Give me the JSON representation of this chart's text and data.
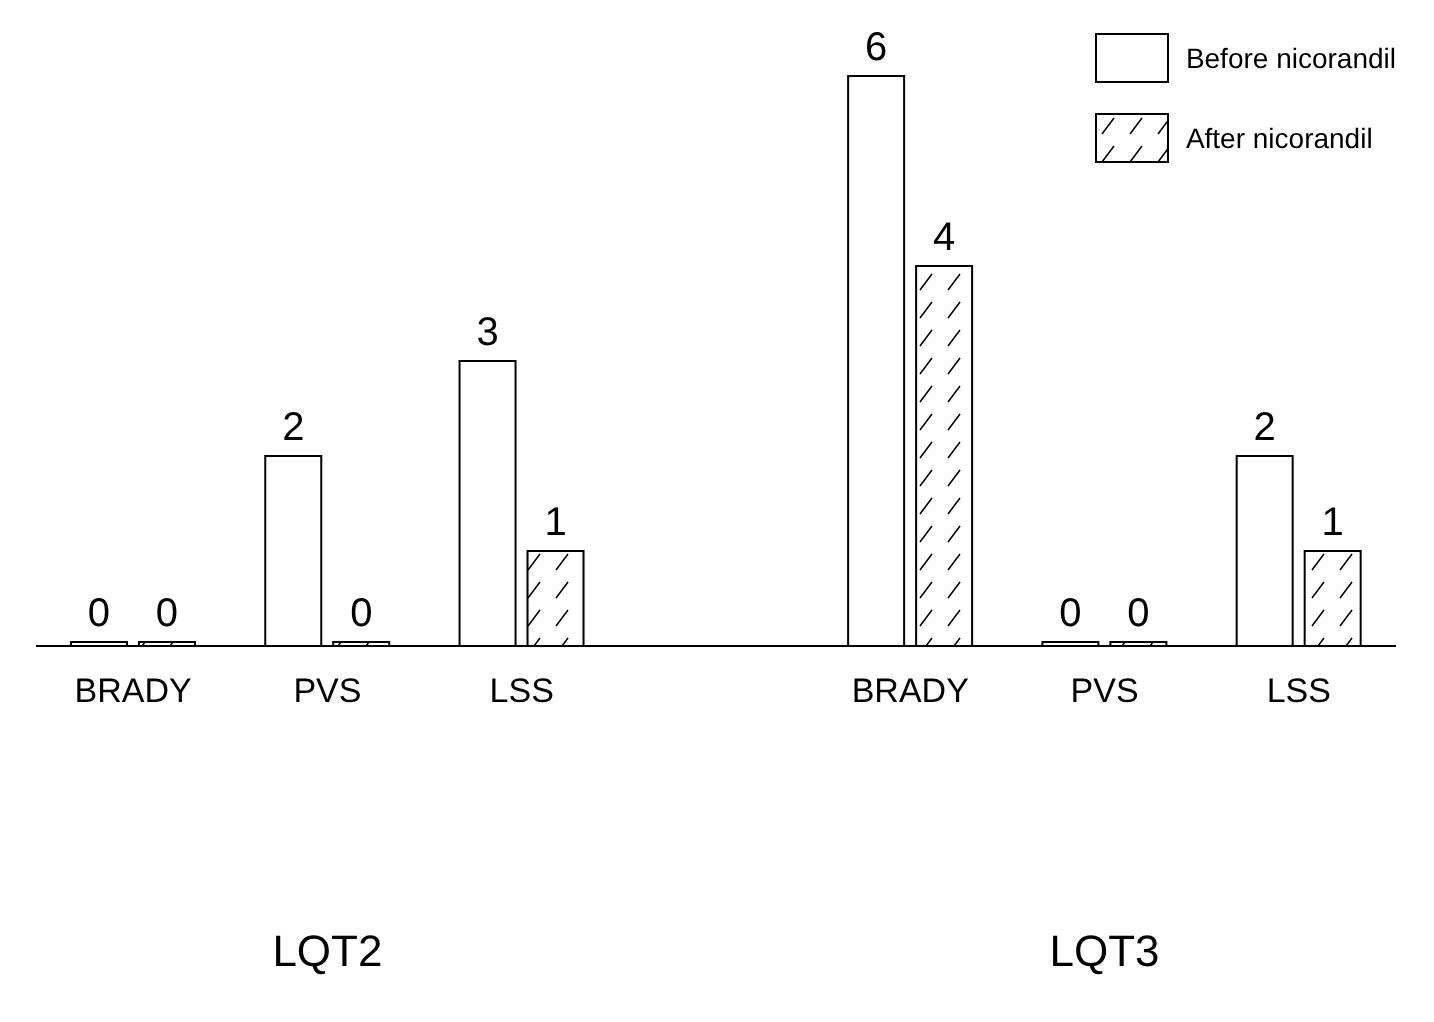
{
  "chart_data": {
    "type": "bar",
    "categories": [
      "BRADY",
      "PVS",
      "LSS",
      null,
      "BRADY",
      "PVS",
      "LSS"
    ],
    "series": [
      {
        "name": "Before nicorandil",
        "color": "#ffffff",
        "values": [
          0,
          2,
          3,
          null,
          6,
          0,
          2
        ]
      },
      {
        "name": "After nicorandil",
        "color": "#000000",
        "values": [
          0,
          0,
          1,
          null,
          4,
          0,
          1
        ]
      }
    ],
    "data_labels": true,
    "legend": "top right",
    "grid": false,
    "annotations": [
      "LQT2",
      "LQT3"
    ]
  }
}
